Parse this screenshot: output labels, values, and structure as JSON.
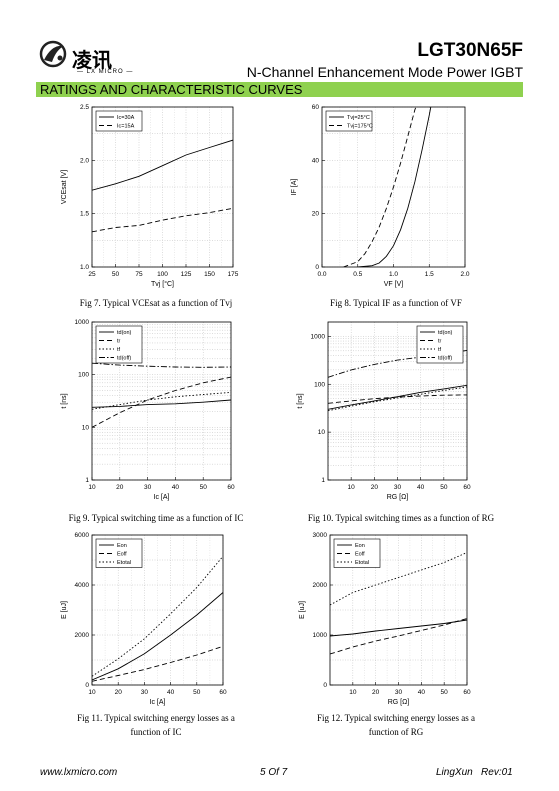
{
  "header": {
    "part_number": "LGT30N65F",
    "subtitle": "N-Channel Enhancement Mode Power IGBT",
    "logo_cn": "凌讯",
    "logo_en": "— LX MICRO —",
    "section_title": "RATINGS AND CHARACTERISTIC CURVES"
  },
  "chart_data": [
    {
      "type": "line",
      "ylabel": "VCEsat [V]",
      "xlabel": "Tvj [°C]",
      "xlim": [
        25,
        175
      ],
      "ylim": [
        1.0,
        2.5
      ],
      "xticks": [
        25,
        50,
        75,
        100,
        125,
        150,
        175
      ],
      "yticks": [
        1.0,
        1.5,
        2.0,
        2.5
      ],
      "grid": true,
      "legend": "top-left",
      "series": [
        {
          "name": "Ic=30A",
          "style": "solid",
          "x": [
            25,
            50,
            75,
            100,
            125,
            150,
            175
          ],
          "y": [
            1.72,
            1.78,
            1.85,
            1.95,
            2.05,
            2.12,
            2.19
          ]
        },
        {
          "name": "Ic=15A",
          "style": "dashed",
          "x": [
            25,
            50,
            75,
            100,
            125,
            150,
            175
          ],
          "y": [
            1.33,
            1.37,
            1.39,
            1.44,
            1.48,
            1.51,
            1.55
          ]
        }
      ]
    },
    {
      "type": "line",
      "ylabel": "IF [A]",
      "xlabel": "VF [V]",
      "xlim": [
        0.0,
        2.0
      ],
      "ylim": [
        0,
        60
      ],
      "xticks": [
        0.0,
        0.5,
        1.0,
        1.5,
        2.0
      ],
      "yticks": [
        0,
        20,
        40,
        60
      ],
      "grid": true,
      "legend": "top-left",
      "series": [
        {
          "name": "Tvj=25°C",
          "style": "solid",
          "x": [
            0.5,
            0.7,
            0.8,
            0.9,
            1.0,
            1.1,
            1.2,
            1.3,
            1.4,
            1.5,
            1.55
          ],
          "y": [
            0,
            0.5,
            1.5,
            4,
            8,
            14,
            22,
            32,
            44,
            57,
            64
          ]
        },
        {
          "name": "Tvj=175°C",
          "style": "dashed",
          "x": [
            0.3,
            0.5,
            0.6,
            0.7,
            0.8,
            0.9,
            1.0,
            1.1,
            1.2,
            1.3,
            1.37
          ],
          "y": [
            0,
            2,
            5,
            9.5,
            15,
            22,
            30,
            39,
            49,
            59,
            64
          ]
        }
      ]
    },
    {
      "type": "line",
      "scale": "log",
      "ylabel": "t [ns]",
      "xlabel": "Ic [A]",
      "xlim": [
        10,
        60
      ],
      "ylim": [
        1,
        1000
      ],
      "xticks": [
        10,
        20,
        30,
        40,
        50,
        60
      ],
      "yticks": [
        1,
        10,
        100,
        1000
      ],
      "grid": true,
      "legend": "top-left",
      "series": [
        {
          "name": "td(on)",
          "style": "solid",
          "x": [
            10,
            20,
            30,
            40,
            50,
            60
          ],
          "y": [
            24,
            25,
            27,
            28,
            30,
            33
          ]
        },
        {
          "name": "tr",
          "style": "dashed",
          "x": [
            10,
            20,
            30,
            40,
            50,
            60
          ],
          "y": [
            10,
            19,
            33,
            50,
            70,
            90
          ]
        },
        {
          "name": "tf",
          "style": "dotted",
          "x": [
            10,
            20,
            30,
            40,
            50,
            60
          ],
          "y": [
            22,
            27,
            33,
            38,
            42,
            46
          ]
        },
        {
          "name": "td(off)",
          "style": "dashdot",
          "x": [
            10,
            20,
            30,
            40,
            50,
            60
          ],
          "y": [
            165,
            152,
            145,
            140,
            138,
            140
          ]
        }
      ]
    },
    {
      "type": "line",
      "scale": "log",
      "ylabel": "t [ns]",
      "xlabel": "RG [Ω]",
      "xlim": [
        0,
        60
      ],
      "ylim": [
        1,
        2000
      ],
      "xticks": [
        10,
        20,
        30,
        40,
        50,
        60
      ],
      "yticks": [
        1,
        10,
        100,
        1000
      ],
      "grid": true,
      "legend": "top-right",
      "series": [
        {
          "name": "td(on)",
          "style": "solid",
          "x": [
            0,
            10,
            20,
            30,
            40,
            50,
            60
          ],
          "y": [
            30,
            37,
            45,
            55,
            68,
            80,
            95
          ]
        },
        {
          "name": "tr",
          "style": "dashed",
          "x": [
            0,
            10,
            20,
            30,
            40,
            50,
            60
          ],
          "y": [
            40,
            45,
            50,
            54,
            57,
            59,
            60
          ]
        },
        {
          "name": "tf",
          "style": "dotted",
          "x": [
            0,
            10,
            20,
            30,
            40,
            50,
            60
          ],
          "y": [
            28,
            35,
            43,
            52,
            62,
            74,
            88
          ]
        },
        {
          "name": "td(off)",
          "style": "dashdot",
          "x": [
            0,
            10,
            20,
            30,
            40,
            50,
            60
          ],
          "y": [
            140,
            200,
            260,
            320,
            370,
            430,
            510
          ]
        }
      ]
    },
    {
      "type": "line",
      "ylabel": "E [uJ]",
      "xlabel": "Ic [A]",
      "xlim": [
        10,
        60
      ],
      "ylim": [
        0,
        6000
      ],
      "xticks": [
        10,
        20,
        30,
        40,
        50,
        60
      ],
      "yticks": [
        0,
        2000,
        4000,
        6000
      ],
      "grid": true,
      "legend": "top-left",
      "series": [
        {
          "name": "Eon",
          "style": "solid",
          "x": [
            10,
            20,
            30,
            40,
            50,
            60
          ],
          "y": [
            200,
            650,
            1250,
            2000,
            2800,
            3700
          ]
        },
        {
          "name": "Eoff",
          "style": "dashed",
          "x": [
            10,
            20,
            30,
            40,
            50,
            60
          ],
          "y": [
            150,
            380,
            620,
            900,
            1200,
            1550
          ]
        },
        {
          "name": "Etotal",
          "style": "dotted",
          "x": [
            10,
            20,
            30,
            40,
            50,
            60
          ],
          "y": [
            350,
            1050,
            1850,
            2850,
            3900,
            5150
          ]
        }
      ]
    },
    {
      "type": "line",
      "ylabel": "E [uJ]",
      "xlabel": "RG [Ω]",
      "xlim": [
        0,
        60
      ],
      "ylim": [
        0,
        3000
      ],
      "xticks": [
        10,
        20,
        30,
        40,
        50,
        60
      ],
      "yticks": [
        0,
        1000,
        2000,
        3000
      ],
      "grid": true,
      "legend": "top-left",
      "series": [
        {
          "name": "Eon",
          "style": "solid",
          "x": [
            0,
            10,
            20,
            30,
            40,
            50,
            60
          ],
          "y": [
            980,
            1020,
            1080,
            1130,
            1180,
            1230,
            1300
          ]
        },
        {
          "name": "Eoff",
          "style": "dashed",
          "x": [
            0,
            10,
            20,
            30,
            40,
            50,
            60
          ],
          "y": [
            620,
            760,
            880,
            980,
            1090,
            1200,
            1330
          ]
        },
        {
          "name": "Etotal",
          "style": "dotted",
          "x": [
            0,
            10,
            20,
            30,
            40,
            50,
            60
          ],
          "y": [
            1600,
            1850,
            2000,
            2150,
            2300,
            2450,
            2650
          ]
        }
      ]
    }
  ],
  "captions": {
    "fig7": "Fig 7. Typical VCEsat as a function of Tvj",
    "fig8": "Fig 8. Typical IF as a function of VF",
    "fig9": "Fig 9. Typical switching time as a function of IC",
    "fig10": "Fig 10. Typical switching times as a function of RG",
    "fig11_l1": "Fig 11. Typical switching energy losses as a",
    "fig11_l2": "function of IC",
    "fig12_l1": "Fig 12. Typical switching energy losses as a",
    "fig12_l2": "function of RG"
  },
  "footer": {
    "website": "www.lxmicro.com",
    "page": "5 Of 7",
    "company_rev": "LingXun   Rev:01"
  }
}
